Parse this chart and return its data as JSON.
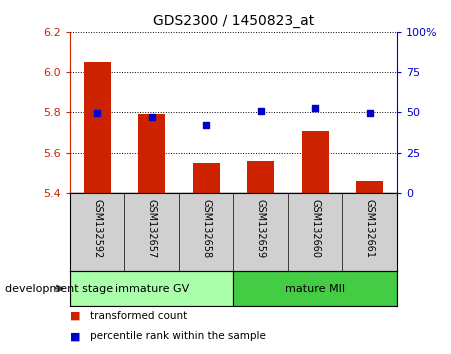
{
  "title": "GDS2300 / 1450823_at",
  "samples": [
    "GSM132592",
    "GSM132657",
    "GSM132658",
    "GSM132659",
    "GSM132660",
    "GSM132661"
  ],
  "bar_values": [
    6.05,
    5.79,
    5.55,
    5.56,
    5.71,
    5.46
  ],
  "dot_values": [
    5.795,
    5.775,
    5.735,
    5.805,
    5.82,
    5.795
  ],
  "bar_bottom": 5.4,
  "ylim": [
    5.4,
    6.2
  ],
  "y2lim": [
    0,
    100
  ],
  "yticks": [
    5.4,
    5.6,
    5.8,
    6.0,
    6.2
  ],
  "y2ticks": [
    0,
    25,
    50,
    75,
    100
  ],
  "y2tick_labels": [
    "0",
    "25",
    "50",
    "75",
    "100%"
  ],
  "bar_color": "#cc2200",
  "dot_color": "#0000cc",
  "group_colors": [
    "#aaffaa",
    "#44cc44"
  ],
  "group_labels": [
    "immature GV",
    "mature MII"
  ],
  "group_ranges": [
    [
      0,
      3
    ],
    [
      3,
      6
    ]
  ],
  "left_axis_color": "#cc2200",
  "right_axis_color": "#0000cc",
  "legend_bar_label": "transformed count",
  "legend_dot_label": "percentile rank within the sample",
  "development_stage_label": "development stage",
  "tick_area_bg": "#d0d0d0",
  "plot_bg": "#ffffff",
  "fig_bg": "#ffffff"
}
